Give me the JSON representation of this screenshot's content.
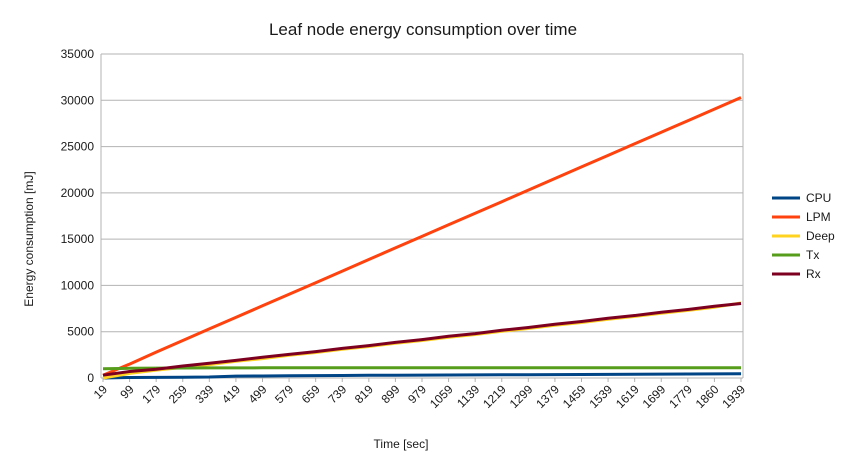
{
  "chart_data": {
    "type": "line",
    "title": "Leaf node energy consumption over time",
    "xlabel": "Time [sec]",
    "ylabel": "Energy consumption [mJ]",
    "ylim": [
      0,
      35000
    ],
    "yticks": [
      0,
      5000,
      10000,
      15000,
      20000,
      25000,
      30000,
      35000
    ],
    "grid": "horizontal",
    "legend_position": "right",
    "categories": [
      "19",
      "99",
      "179",
      "259",
      "339",
      "419",
      "499",
      "579",
      "659",
      "739",
      "819",
      "899",
      "979",
      "1059",
      "1139",
      "1219",
      "1299",
      "1379",
      "1459",
      "1539",
      "1619",
      "1699",
      "1779",
      "1860",
      "1939"
    ],
    "series": [
      {
        "name": "CPU",
        "color": "#004586",
        "values": [
          0,
          50,
          70,
          90,
          110,
          200,
          220,
          240,
          255,
          270,
          290,
          300,
          310,
          320,
          330,
          345,
          355,
          365,
          375,
          385,
          400,
          420,
          430,
          440,
          450
        ]
      },
      {
        "name": "LPM",
        "color": "#ff420e",
        "values": [
          300,
          1500,
          2800,
          4050,
          5300,
          6550,
          7800,
          9050,
          10300,
          11550,
          12800,
          14050,
          15300,
          16550,
          17800,
          19050,
          20300,
          21550,
          22800,
          24050,
          25300,
          26550,
          27800,
          29050,
          30300
        ]
      },
      {
        "name": "Deep",
        "color": "#ffd320",
        "values": [
          0,
          500,
          850,
          1150,
          1450,
          1800,
          2100,
          2450,
          2750,
          3100,
          3400,
          3750,
          4050,
          4400,
          4700,
          5050,
          5350,
          5700,
          6000,
          6350,
          6650,
          7000,
          7300,
          7650,
          8100
        ]
      },
      {
        "name": "Tx",
        "color": "#579d1c",
        "values": [
          1000,
          1050,
          1070,
          1080,
          1090,
          1095,
          1100,
          1100,
          1100,
          1100,
          1100,
          1100,
          1100,
          1100,
          1100,
          1100,
          1100,
          1100,
          1100,
          1100,
          1100,
          1100,
          1100,
          1100,
          1100
        ]
      },
      {
        "name": "Rx",
        "color": "#7e0021",
        "values": [
          300,
          700,
          950,
          1300,
          1600,
          1900,
          2250,
          2550,
          2850,
          3200,
          3500,
          3850,
          4150,
          4500,
          4800,
          5150,
          5450,
          5800,
          6100,
          6450,
          6750,
          7100,
          7400,
          7750,
          8050
        ]
      }
    ]
  }
}
